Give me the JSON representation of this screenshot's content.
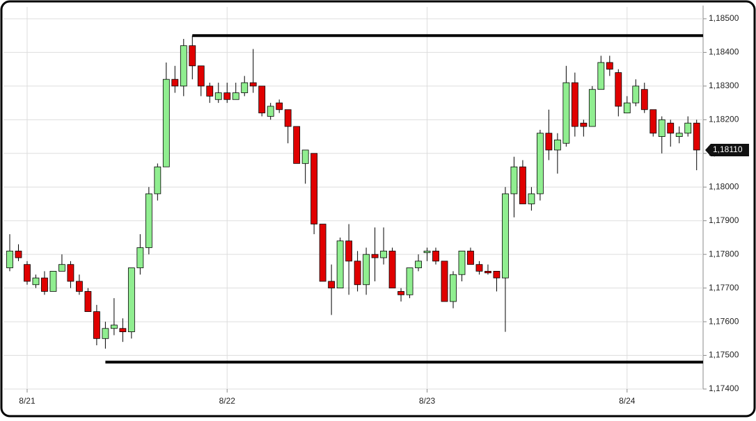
{
  "chart_data": {
    "type": "candlestick",
    "categories": [
      null,
      null,
      "8/21",
      null,
      null,
      null,
      null,
      null,
      null,
      null,
      null,
      null,
      null,
      null,
      null,
      null,
      null,
      null,
      null,
      null,
      null,
      null,
      null,
      null,
      null,
      "8/22",
      null,
      null,
      null,
      null,
      null,
      null,
      null,
      null,
      null,
      null,
      null,
      null,
      null,
      null,
      null,
      null,
      null,
      null,
      null,
      null,
      null,
      null,
      "8/23",
      null,
      null,
      null,
      null,
      null,
      null,
      null,
      null,
      null,
      null,
      null,
      null,
      null,
      null,
      null,
      null,
      null,
      null,
      null,
      null,
      null,
      null,
      "8/24",
      null,
      null,
      null,
      null,
      null,
      null,
      null,
      null
    ],
    "open": [
      1.1776,
      1.1781,
      1.1777,
      1.1771,
      1.1773,
      1.1769,
      1.1775,
      1.1777,
      1.1772,
      1.1769,
      1.1763,
      1.1755,
      1.1758,
      1.1758,
      1.1757,
      1.1776,
      1.1782,
      1.1798,
      1.1806,
      1.1832,
      1.183,
      1.1842,
      1.1836,
      1.183,
      1.1826,
      1.1828,
      1.1826,
      1.1828,
      1.1831,
      1.183,
      1.1821,
      1.1825,
      1.1823,
      1.1818,
      1.1807,
      1.181,
      1.1789,
      1.1772,
      1.177,
      1.1784,
      1.1778,
      1.1771,
      1.178,
      1.1779,
      1.1781,
      1.1769,
      1.1768,
      1.1776,
      1.17805,
      1.1781,
      1.1778,
      1.1766,
      1.1774,
      1.1781,
      1.1777,
      1.1775,
      1.1775,
      1.1773,
      1.1798,
      1.1806,
      1.1795,
      1.1798,
      1.1816,
      1.1811,
      1.1813,
      1.1831,
      1.1819,
      1.1818,
      1.1829,
      1.1837,
      1.1834,
      1.1822,
      1.1825,
      1.1829,
      1.1823,
      1.1815,
      1.1819,
      1.1815,
      1.1816,
      1.1819
    ],
    "high": [
      1.1786,
      1.1783,
      1.1778,
      1.1774,
      1.1775,
      1.1775,
      1.178,
      1.1778,
      1.1774,
      1.177,
      1.1765,
      1.176,
      1.1767,
      1.1761,
      1.1776,
      1.1786,
      1.18,
      1.1807,
      1.1837,
      1.1836,
      1.1844,
      1.1845,
      1.1836,
      1.1831,
      1.1831,
      1.1831,
      1.1831,
      1.1833,
      1.1841,
      1.183,
      1.1825,
      1.1826,
      1.1823,
      1.1818,
      1.1811,
      1.181,
      1.1789,
      1.1777,
      1.1785,
      1.1789,
      1.1781,
      1.1782,
      1.1788,
      1.1788,
      1.1782,
      1.177,
      1.1776,
      1.178,
      1.1782,
      1.1782,
      1.1778,
      1.1775,
      1.1781,
      1.1782,
      1.1778,
      1.1777,
      1.1775,
      1.18,
      1.1809,
      1.1808,
      1.18,
      1.1817,
      1.1823,
      1.1816,
      1.1836,
      1.1834,
      1.182,
      1.183,
      1.1839,
      1.1839,
      1.1835,
      1.1827,
      1.1832,
      1.1831,
      1.1823,
      1.1821,
      1.182,
      1.1818,
      1.1821,
      1.182
    ],
    "low": [
      1.1775,
      1.1778,
      1.1771,
      1.177,
      1.1768,
      1.1769,
      1.1775,
      1.177,
      1.1768,
      1.1763,
      1.1753,
      1.1752,
      1.1756,
      1.1754,
      1.1755,
      1.1774,
      1.178,
      1.1796,
      1.1806,
      1.1828,
      1.1827,
      1.1832,
      1.1827,
      1.1825,
      1.1825,
      1.1825,
      1.1826,
      1.1827,
      1.1828,
      1.1821,
      1.182,
      1.1822,
      1.1813,
      1.1807,
      1.1801,
      1.1786,
      1.1772,
      1.1762,
      1.177,
      1.1768,
      1.1769,
      1.1768,
      1.1772,
      1.1777,
      1.177,
      1.1766,
      1.1767,
      1.1775,
      1.1778,
      1.1777,
      1.1766,
      1.1764,
      1.1772,
      1.1777,
      1.1774,
      1.1774,
      1.1769,
      1.1757,
      1.1791,
      1.1795,
      1.1793,
      1.1796,
      1.1808,
      1.1804,
      1.1812,
      1.1815,
      1.1815,
      1.1818,
      1.1829,
      1.1833,
      1.1821,
      1.1822,
      1.1824,
      1.1822,
      1.1815,
      1.181,
      1.1812,
      1.1813,
      1.1815,
      1.1805
    ],
    "close": [
      1.1781,
      1.1779,
      1.1772,
      1.1773,
      1.1769,
      1.1775,
      1.1777,
      1.1772,
      1.1769,
      1.1763,
      1.1755,
      1.1758,
      1.1759,
      1.1757,
      1.1776,
      1.1782,
      1.1798,
      1.1806,
      1.1832,
      1.183,
      1.1842,
      1.1836,
      1.183,
      1.1827,
      1.1828,
      1.1826,
      1.1828,
      1.1831,
      1.183,
      1.1822,
      1.1824,
      1.1823,
      1.1818,
      1.1807,
      1.1811,
      1.1789,
      1.1772,
      1.177,
      1.1784,
      1.1778,
      1.1771,
      1.178,
      1.1779,
      1.1781,
      1.177,
      1.1768,
      1.1776,
      1.1778,
      1.1781,
      1.1778,
      1.1766,
      1.1774,
      1.1781,
      1.1777,
      1.1775,
      1.17745,
      1.1773,
      1.1798,
      1.1806,
      1.1795,
      1.1798,
      1.1816,
      1.1811,
      1.1814,
      1.1831,
      1.1818,
      1.1818,
      1.1829,
      1.1837,
      1.1835,
      1.1824,
      1.1825,
      1.183,
      1.1823,
      1.1816,
      1.182,
      1.1816,
      1.1816,
      1.1819,
      1.1811
    ],
    "up_color": "#90ee90",
    "down_color": "#e00000",
    "ylim": [
      1.174,
      1.18535
    ],
    "yticks": [
      {
        "value": 1.174,
        "label": "1,17400"
      },
      {
        "value": 1.175,
        "label": "1,17500"
      },
      {
        "value": 1.176,
        "label": "1,17600"
      },
      {
        "value": 1.177,
        "label": "1,17700"
      },
      {
        "value": 1.178,
        "label": "1,17800"
      },
      {
        "value": 1.179,
        "label": "1,17900"
      },
      {
        "value": 1.18,
        "label": "1,18000"
      },
      {
        "value": 1.181,
        "label": "1,18100"
      },
      {
        "value": 1.182,
        "label": "1,18200"
      },
      {
        "value": 1.183,
        "label": "1,18300"
      },
      {
        "value": 1.184,
        "label": "1,18400"
      },
      {
        "value": 1.185,
        "label": "1,18500"
      }
    ],
    "last_price": {
      "value": 1.1811,
      "label": "1,18110"
    },
    "resistance": 1.1845,
    "support": 1.1748,
    "grid": true
  }
}
